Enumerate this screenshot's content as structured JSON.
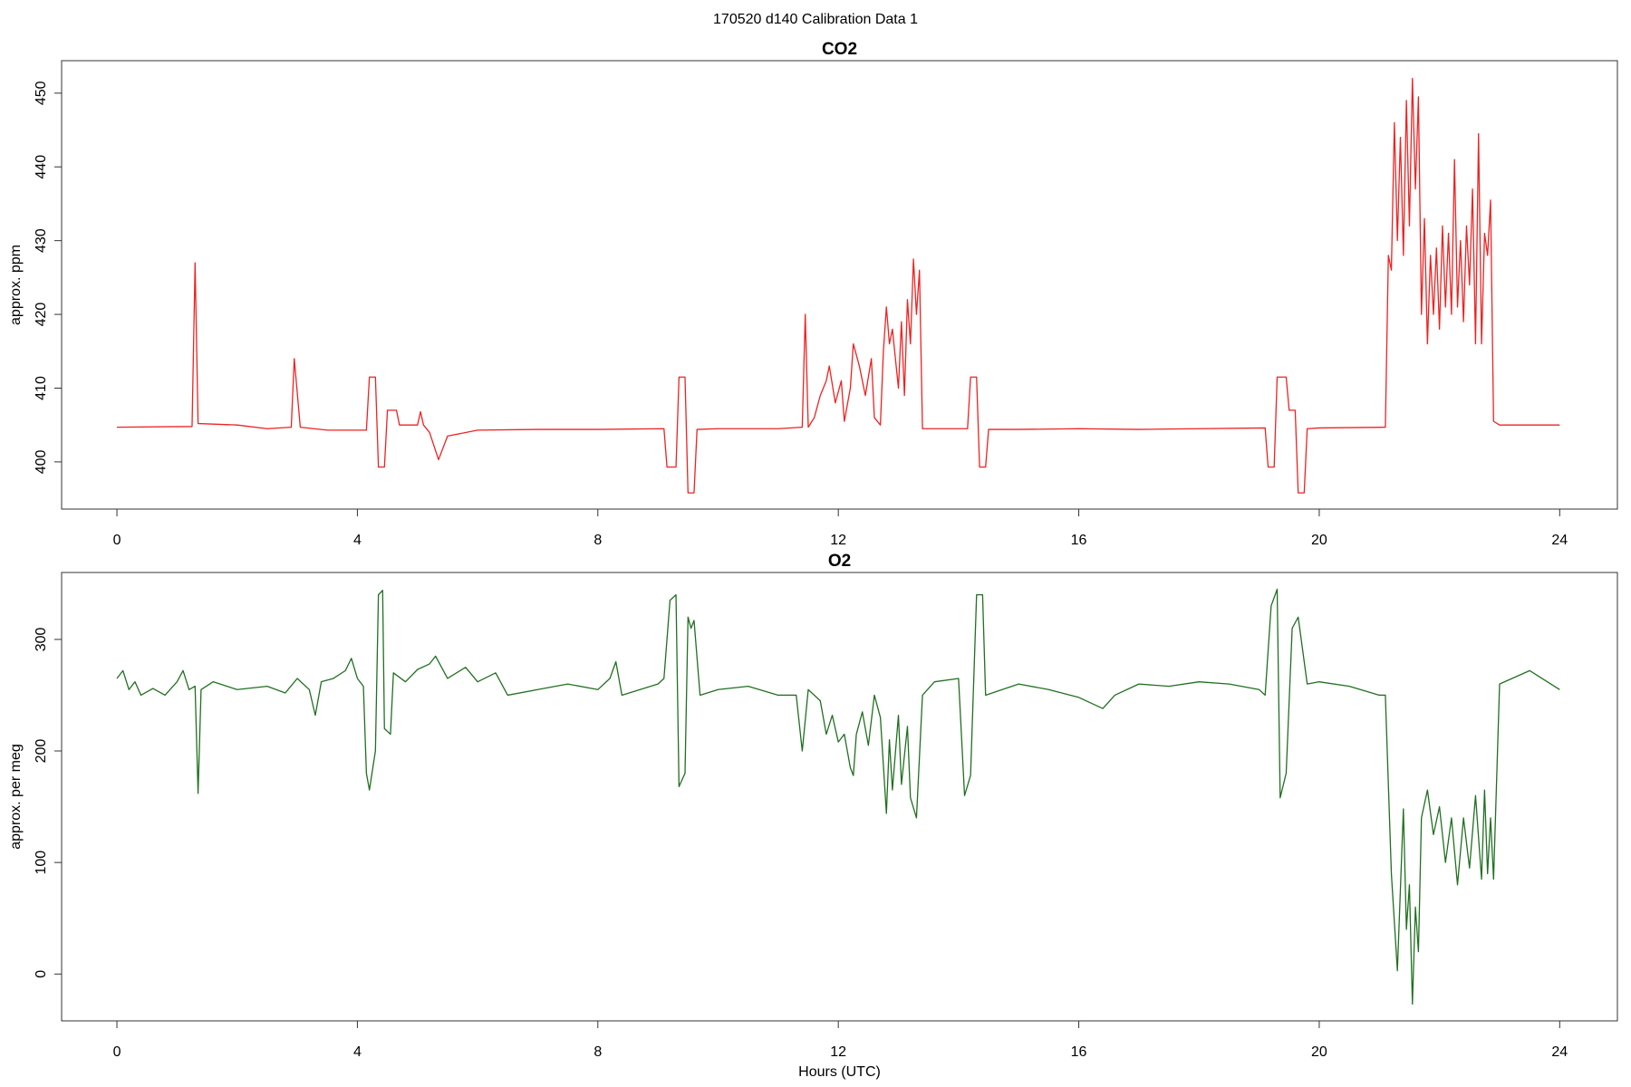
{
  "title": "170520   d140   Calibration Data 1",
  "chart_data": [
    {
      "type": "line",
      "title": "CO2",
      "y_label": "approx. ppm",
      "color": "#ee2222",
      "x": [
        0,
        1.25,
        1.3,
        1.35,
        2,
        2.5,
        2.9,
        2.95,
        3.05,
        3.5,
        4.15,
        4.2,
        4.3,
        4.35,
        4.45,
        4.5,
        4.65,
        4.7,
        5,
        5.05,
        5.1,
        5.2,
        5.35,
        5.5,
        6,
        7,
        8,
        9.1,
        9.15,
        9.3,
        9.35,
        9.45,
        9.5,
        9.6,
        9.65,
        10,
        11,
        11.4,
        11.45,
        11.5,
        11.6,
        11.7,
        11.8,
        11.85,
        11.95,
        12.05,
        12.1,
        12.2,
        12.25,
        12.35,
        12.45,
        12.55,
        12.6,
        12.7,
        12.75,
        12.8,
        12.85,
        12.9,
        13,
        13.05,
        13.1,
        13.15,
        13.2,
        13.25,
        13.3,
        13.35,
        13.4,
        14.15,
        14.2,
        14.3,
        14.35,
        14.45,
        14.5,
        15,
        16,
        17,
        18,
        19.1,
        19.15,
        19.25,
        19.3,
        19.45,
        19.5,
        19.6,
        19.65,
        19.75,
        19.8,
        20,
        21.1,
        21.15,
        21.2,
        21.25,
        21.3,
        21.35,
        21.4,
        21.45,
        21.5,
        21.55,
        21.6,
        21.65,
        21.7,
        21.75,
        21.8,
        21.85,
        21.9,
        21.95,
        22,
        22.05,
        22.1,
        22.15,
        22.2,
        22.25,
        22.3,
        22.35,
        22.4,
        22.45,
        22.5,
        22.55,
        22.6,
        22.65,
        22.7,
        22.75,
        22.8,
        22.85,
        22.9,
        23,
        24
      ],
      "values": [
        404.7,
        404.8,
        427,
        405.2,
        405,
        404.5,
        404.7,
        414,
        404.7,
        404.3,
        404.3,
        411.5,
        411.5,
        399.3,
        399.3,
        407,
        407,
        405,
        405,
        406.8,
        405,
        404,
        400.3,
        403.5,
        404.3,
        404.4,
        404.4,
        404.5,
        399.3,
        399.3,
        411.5,
        411.5,
        395.8,
        395.8,
        404.4,
        404.5,
        404.5,
        404.7,
        420,
        404.7,
        406,
        409,
        411,
        413,
        408,
        411,
        405.5,
        410,
        416,
        413,
        409,
        414,
        406,
        405,
        415,
        421,
        416,
        418,
        410,
        419,
        409,
        422,
        416,
        427.5,
        420,
        426,
        404.5,
        404.5,
        411.5,
        411.5,
        399.3,
        399.3,
        404.4,
        404.4,
        404.5,
        404.4,
        404.5,
        404.6,
        399.3,
        399.3,
        411.5,
        411.5,
        407,
        407,
        395.8,
        395.8,
        404.5,
        404.6,
        404.7,
        428,
        426,
        446,
        430,
        444,
        428,
        449,
        432,
        452,
        437,
        449.5,
        420,
        433,
        416,
        428,
        420,
        429,
        418,
        432,
        421,
        431,
        420,
        441,
        421,
        430,
        419,
        432,
        424,
        437,
        416,
        444.5,
        416,
        431,
        428,
        435.5,
        405.5,
        405,
        405
      ],
      "xlim": [
        -0.92,
        24.96
      ],
      "xticks": [
        0,
        4,
        8,
        12,
        16,
        20,
        24
      ],
      "ylim": [
        393.6,
        454.4
      ],
      "yticks": [
        400,
        410,
        420,
        430,
        440,
        450
      ]
    },
    {
      "type": "line",
      "title": "O2",
      "x_label": "Hours (UTC)",
      "y_label": "approx. per meg",
      "color": "#207020",
      "x": [
        0,
        0.1,
        0.2,
        0.3,
        0.4,
        0.6,
        0.8,
        1,
        1.1,
        1.2,
        1.3,
        1.35,
        1.4,
        1.6,
        2,
        2.5,
        2.8,
        3,
        3.2,
        3.3,
        3.4,
        3.6,
        3.8,
        3.9,
        4,
        4.1,
        4.15,
        4.2,
        4.3,
        4.35,
        4.42,
        4.45,
        4.55,
        4.6,
        4.8,
        5,
        5.2,
        5.3,
        5.5,
        5.8,
        6,
        6.3,
        6.5,
        7,
        7.5,
        8,
        8.2,
        8.3,
        8.4,
        9,
        9.1,
        9.2,
        9.3,
        9.35,
        9.45,
        9.5,
        9.55,
        9.6,
        9.7,
        10,
        10.5,
        11,
        11.3,
        11.4,
        11.5,
        11.7,
        11.8,
        11.9,
        12,
        12.1,
        12.2,
        12.25,
        12.3,
        12.4,
        12.5,
        12.6,
        12.7,
        12.8,
        12.85,
        12.9,
        13,
        13.05,
        13.15,
        13.2,
        13.3,
        13.4,
        13.6,
        14,
        14.1,
        14.2,
        14.3,
        14.4,
        14.45,
        15,
        15.5,
        16,
        16.4,
        16.6,
        17,
        17.5,
        18,
        18.5,
        19,
        19.1,
        19.2,
        19.3,
        19.35,
        19.45,
        19.55,
        19.65,
        19.7,
        19.8,
        20,
        20.5,
        21,
        21.1,
        21.2,
        21.3,
        21.4,
        21.45,
        21.5,
        21.55,
        21.6,
        21.65,
        21.7,
        21.8,
        21.9,
        22,
        22.1,
        22.2,
        22.3,
        22.4,
        22.5,
        22.6,
        22.7,
        22.75,
        22.8,
        22.85,
        22.9,
        23,
        23.5,
        24
      ],
      "values": [
        265,
        272,
        255,
        262,
        250,
        256,
        250,
        262,
        272,
        255,
        258,
        162,
        255,
        262,
        255,
        258,
        252,
        265,
        255,
        232,
        262,
        265,
        272,
        283,
        265,
        258,
        180,
        165,
        200,
        340,
        344,
        220,
        215,
        270,
        262,
        273,
        278,
        285,
        265,
        275,
        262,
        270,
        250,
        255,
        260,
        255,
        265,
        280,
        250,
        260,
        265,
        335,
        340,
        168,
        180,
        320,
        310,
        317,
        250,
        255,
        258,
        250,
        250,
        200,
        255,
        245,
        215,
        232,
        208,
        215,
        185,
        178,
        215,
        235,
        205,
        250,
        230,
        144,
        210,
        165,
        232,
        170,
        222,
        158,
        140,
        250,
        262,
        265,
        160,
        178,
        340,
        340,
        250,
        260,
        255,
        248,
        238,
        250,
        260,
        258,
        262,
        260,
        255,
        250,
        330,
        345,
        158,
        180,
        310,
        320,
        300,
        260,
        262,
        258,
        250,
        250,
        90,
        3,
        148,
        40,
        80,
        -27,
        60,
        20,
        140,
        165,
        125,
        150,
        100,
        140,
        80,
        140,
        95,
        160,
        85,
        165,
        90,
        140,
        85,
        260,
        272,
        255
      ],
      "xlim": [
        -0.92,
        24.96
      ],
      "xticks": [
        0,
        4,
        8,
        12,
        16,
        20,
        24
      ],
      "ylim": [
        -42,
        360
      ],
      "yticks": [
        0,
        100,
        200,
        300
      ]
    }
  ]
}
